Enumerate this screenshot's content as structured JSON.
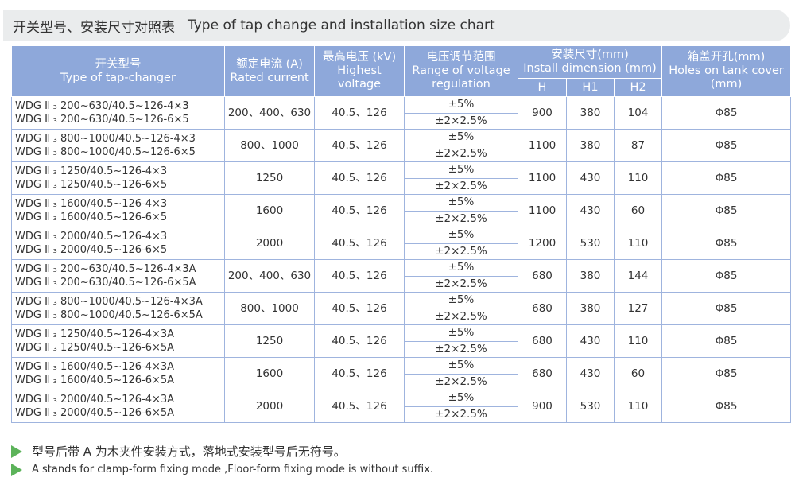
{
  "title": {
    "zh": "开关型号、安装尺寸对照表",
    "en": "Type of tap change and installation size chart"
  },
  "table": {
    "header": {
      "type": [
        "开关型号",
        "Type of tap-changer"
      ],
      "current": [
        "额定电流 (A)",
        "Rated current"
      ],
      "voltage": [
        "最高电压 (kV)",
        "Highest",
        "voltage"
      ],
      "range": [
        "电压调节范围",
        "Range of voltage",
        "regulation"
      ],
      "install": [
        "安装尺寸(mm)",
        "Install dimension (mm)"
      ],
      "dims": [
        "H",
        "H1",
        "H2"
      ],
      "holes": [
        "箱盖开孔(mm)",
        "Holes on tank cover",
        "(mm)"
      ]
    },
    "rows": [
      {
        "type": [
          "WDG Ⅱ ₃ 200~630/40.5~126-4×3",
          "WDG Ⅱ ₃ 200~630/40.5~126-6×5"
        ],
        "current": "200、400、630",
        "voltage": "40.5、126",
        "range": [
          "±5%",
          "±2×2.5%"
        ],
        "dims": [
          900,
          380,
          104
        ],
        "holes": "Φ85"
      },
      {
        "type": [
          "WDG Ⅱ ₃ 800~1000/40.5~126-4×3",
          "WDG Ⅱ ₃ 800~1000/40.5~126-6×5"
        ],
        "current": "800、1000",
        "voltage": "40.5、126",
        "range": [
          "±5%",
          "±2×2.5%"
        ],
        "dims": [
          1100,
          380,
          87
        ],
        "holes": "Φ85"
      },
      {
        "type": [
          "WDG Ⅱ ₃ 1250/40.5~126-4×3",
          "WDG Ⅱ ₃ 1250/40.5~126-6×5"
        ],
        "current": "1250",
        "voltage": "40.5、126",
        "range": [
          "±5%",
          "±2×2.5%"
        ],
        "dims": [
          1100,
          430,
          110
        ],
        "holes": "Φ85"
      },
      {
        "type": [
          "WDG Ⅱ ₃ 1600/40.5~126-4×3",
          "WDG Ⅱ ₃ 1600/40.5~126-6×5"
        ],
        "current": "1600",
        "voltage": "40.5、126",
        "range": [
          "±5%",
          "±2×2.5%"
        ],
        "dims": [
          1100,
          430,
          60
        ],
        "holes": "Φ85"
      },
      {
        "type": [
          "WDG Ⅱ ₃ 2000/40.5~126-4×3",
          "WDG Ⅱ ₃ 2000/40.5~126-6×5"
        ],
        "current": "2000",
        "voltage": "40.5、126",
        "range": [
          "±5%",
          "±2×2.5%"
        ],
        "dims": [
          1200,
          530,
          110
        ],
        "holes": "Φ85"
      },
      {
        "type": [
          "WDG Ⅱ ₃ 200~630/40.5~126-4×3A",
          "WDG Ⅱ ₃ 200~630/40.5~126-6×5A"
        ],
        "current": "200、400、630",
        "voltage": "40.5、126",
        "range": [
          "±5%",
          "±2×2.5%"
        ],
        "dims": [
          680,
          380,
          144
        ],
        "holes": "Φ85"
      },
      {
        "type": [
          "WDG Ⅱ ₃ 800~1000/40.5~126-4×3A",
          "WDG Ⅱ ₃ 800~1000/40.5~126-6×5A"
        ],
        "current": "800、1000",
        "voltage": "40.5、126",
        "range": [
          "±5%",
          "±2×2.5%"
        ],
        "dims": [
          680,
          380,
          127
        ],
        "holes": "Φ85"
      },
      {
        "type": [
          "WDG Ⅱ ₃ 1250/40.5~126-4×3A",
          "WDG Ⅱ ₃ 1250/40.5~126-6×5A"
        ],
        "current": "1250",
        "voltage": "40.5、126",
        "range": [
          "±5%",
          "±2×2.5%"
        ],
        "dims": [
          680,
          430,
          110
        ],
        "holes": "Φ85"
      },
      {
        "type": [
          "WDG Ⅱ ₃ 1600/40.5~126-4×3A",
          "WDG Ⅱ ₃ 1600/40.5~126-6×5A"
        ],
        "current": "1600",
        "voltage": "40.5、126",
        "range": [
          "±5%",
          "±2×2.5%"
        ],
        "dims": [
          680,
          430,
          60
        ],
        "holes": "Φ85"
      },
      {
        "type": [
          "WDG Ⅱ ₃ 2000/40.5~126-4×3A",
          "WDG Ⅱ ₃ 2000/40.5~126-6×5A"
        ],
        "current": "2000",
        "voltage": "40.5、126",
        "range": [
          "±5%",
          "±2×2.5%"
        ],
        "dims": [
          900,
          530,
          110
        ],
        "holes": "Φ85"
      }
    ]
  },
  "notes": [
    "型号后带 A 为木夹件安装方式，落地式安装型号后无符号。",
    "A stands for clamp-form fixing mode ,Floor-form fixing mode is without suffix."
  ]
}
